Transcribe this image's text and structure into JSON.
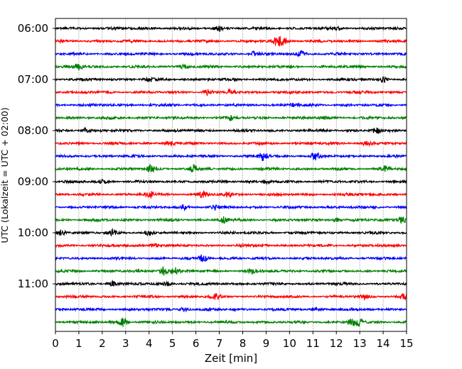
{
  "chart_data": {
    "type": "line",
    "title": "",
    "xlabel": "Zeit  [min]",
    "ylabel": "UTC (Lokalzeit = UTC + 02:00)",
    "xlim": [
      0,
      15
    ],
    "x_ticks": [
      "0",
      "1",
      "2",
      "3",
      "4",
      "5",
      "6",
      "7",
      "8",
      "9",
      "10",
      "11",
      "12",
      "13",
      "14",
      "15"
    ],
    "y_ticks": [
      {
        "label": "06:00",
        "row": 0
      },
      {
        "label": "07:00",
        "row": 4
      },
      {
        "label": "08:00",
        "row": 8
      },
      {
        "label": "09:00",
        "row": 12
      },
      {
        "label": "10:00",
        "row": 16
      },
      {
        "label": "11:00",
        "row": 20
      }
    ],
    "row_minutes": 15,
    "grid": "vertical dotted lines at each minute",
    "color_cycle": [
      "#000000",
      "#ff0000",
      "#0000ff",
      "#008000"
    ],
    "traces": [
      {
        "start": "06:00",
        "events": [
          [
            7.0,
            0.5
          ],
          [
            12.0,
            0.4
          ]
        ]
      },
      {
        "start": "06:15",
        "events": [
          [
            9.5,
            1.2
          ],
          [
            9.8,
            0.7
          ]
        ]
      },
      {
        "start": "06:30",
        "events": [
          [
            10.5,
            0.6
          ],
          [
            8.5,
            0.5
          ]
        ]
      },
      {
        "start": "06:45",
        "events": [
          [
            1.0,
            0.8
          ],
          [
            5.5,
            0.4
          ]
        ]
      },
      {
        "start": "07:00",
        "events": [
          [
            14.0,
            0.6
          ],
          [
            4.0,
            0.4
          ]
        ]
      },
      {
        "start": "07:15",
        "events": [
          [
            6.5,
            0.7
          ],
          [
            7.5,
            0.6
          ]
        ]
      },
      {
        "start": "07:30",
        "events": [
          [
            10.2,
            0.4
          ]
        ]
      },
      {
        "start": "07:45",
        "events": [
          [
            7.5,
            0.5
          ],
          [
            11.5,
            0.4
          ]
        ]
      },
      {
        "start": "08:00",
        "events": [
          [
            1.3,
            0.6
          ],
          [
            13.7,
            0.6
          ]
        ]
      },
      {
        "start": "08:15",
        "events": [
          [
            4.9,
            0.6
          ],
          [
            13.3,
            0.7
          ]
        ]
      },
      {
        "start": "08:30",
        "events": [
          [
            8.9,
            1.1
          ],
          [
            11.1,
            1.0
          ]
        ]
      },
      {
        "start": "08:45",
        "events": [
          [
            4.1,
            1.0
          ],
          [
            5.9,
            0.8
          ],
          [
            14.1,
            0.8
          ]
        ]
      },
      {
        "start": "09:00",
        "events": [
          [
            2.0,
            0.4
          ],
          [
            9.0,
            0.4
          ]
        ]
      },
      {
        "start": "09:15",
        "events": [
          [
            4.0,
            0.8
          ],
          [
            6.3,
            0.8
          ],
          [
            7.4,
            0.6
          ]
        ]
      },
      {
        "start": "09:30",
        "events": [
          [
            5.5,
            0.5
          ],
          [
            6.8,
            0.4
          ]
        ]
      },
      {
        "start": "09:45",
        "events": [
          [
            7.2,
            0.8
          ],
          [
            12.0,
            0.5
          ],
          [
            14.8,
            0.8
          ]
        ]
      },
      {
        "start": "10:00",
        "events": [
          [
            0.2,
            1.0
          ],
          [
            2.4,
            0.6
          ],
          [
            4.0,
            0.6
          ]
        ]
      },
      {
        "start": "10:15",
        "events": [
          [
            4.2,
            0.5
          ],
          [
            8.9,
            0.3
          ]
        ]
      },
      {
        "start": "10:30",
        "events": [
          [
            6.3,
            0.9
          ]
        ]
      },
      {
        "start": "10:45",
        "events": [
          [
            4.6,
            1.1
          ],
          [
            5.1,
            0.8
          ],
          [
            8.4,
            0.6
          ]
        ]
      },
      {
        "start": "11:00",
        "events": [
          [
            2.4,
            0.6
          ],
          [
            4.8,
            0.4
          ]
        ]
      },
      {
        "start": "11:15",
        "events": [
          [
            6.9,
            0.7
          ],
          [
            13.2,
            0.6
          ],
          [
            14.9,
            0.7
          ]
        ]
      },
      {
        "start": "11:30",
        "events": [
          [
            5.5,
            0.5
          ],
          [
            11.2,
            0.3
          ]
        ]
      },
      {
        "start": "11:45",
        "events": [
          [
            2.9,
            1.0
          ],
          [
            12.7,
            0.8
          ],
          [
            13.0,
            0.6
          ]
        ]
      }
    ]
  }
}
